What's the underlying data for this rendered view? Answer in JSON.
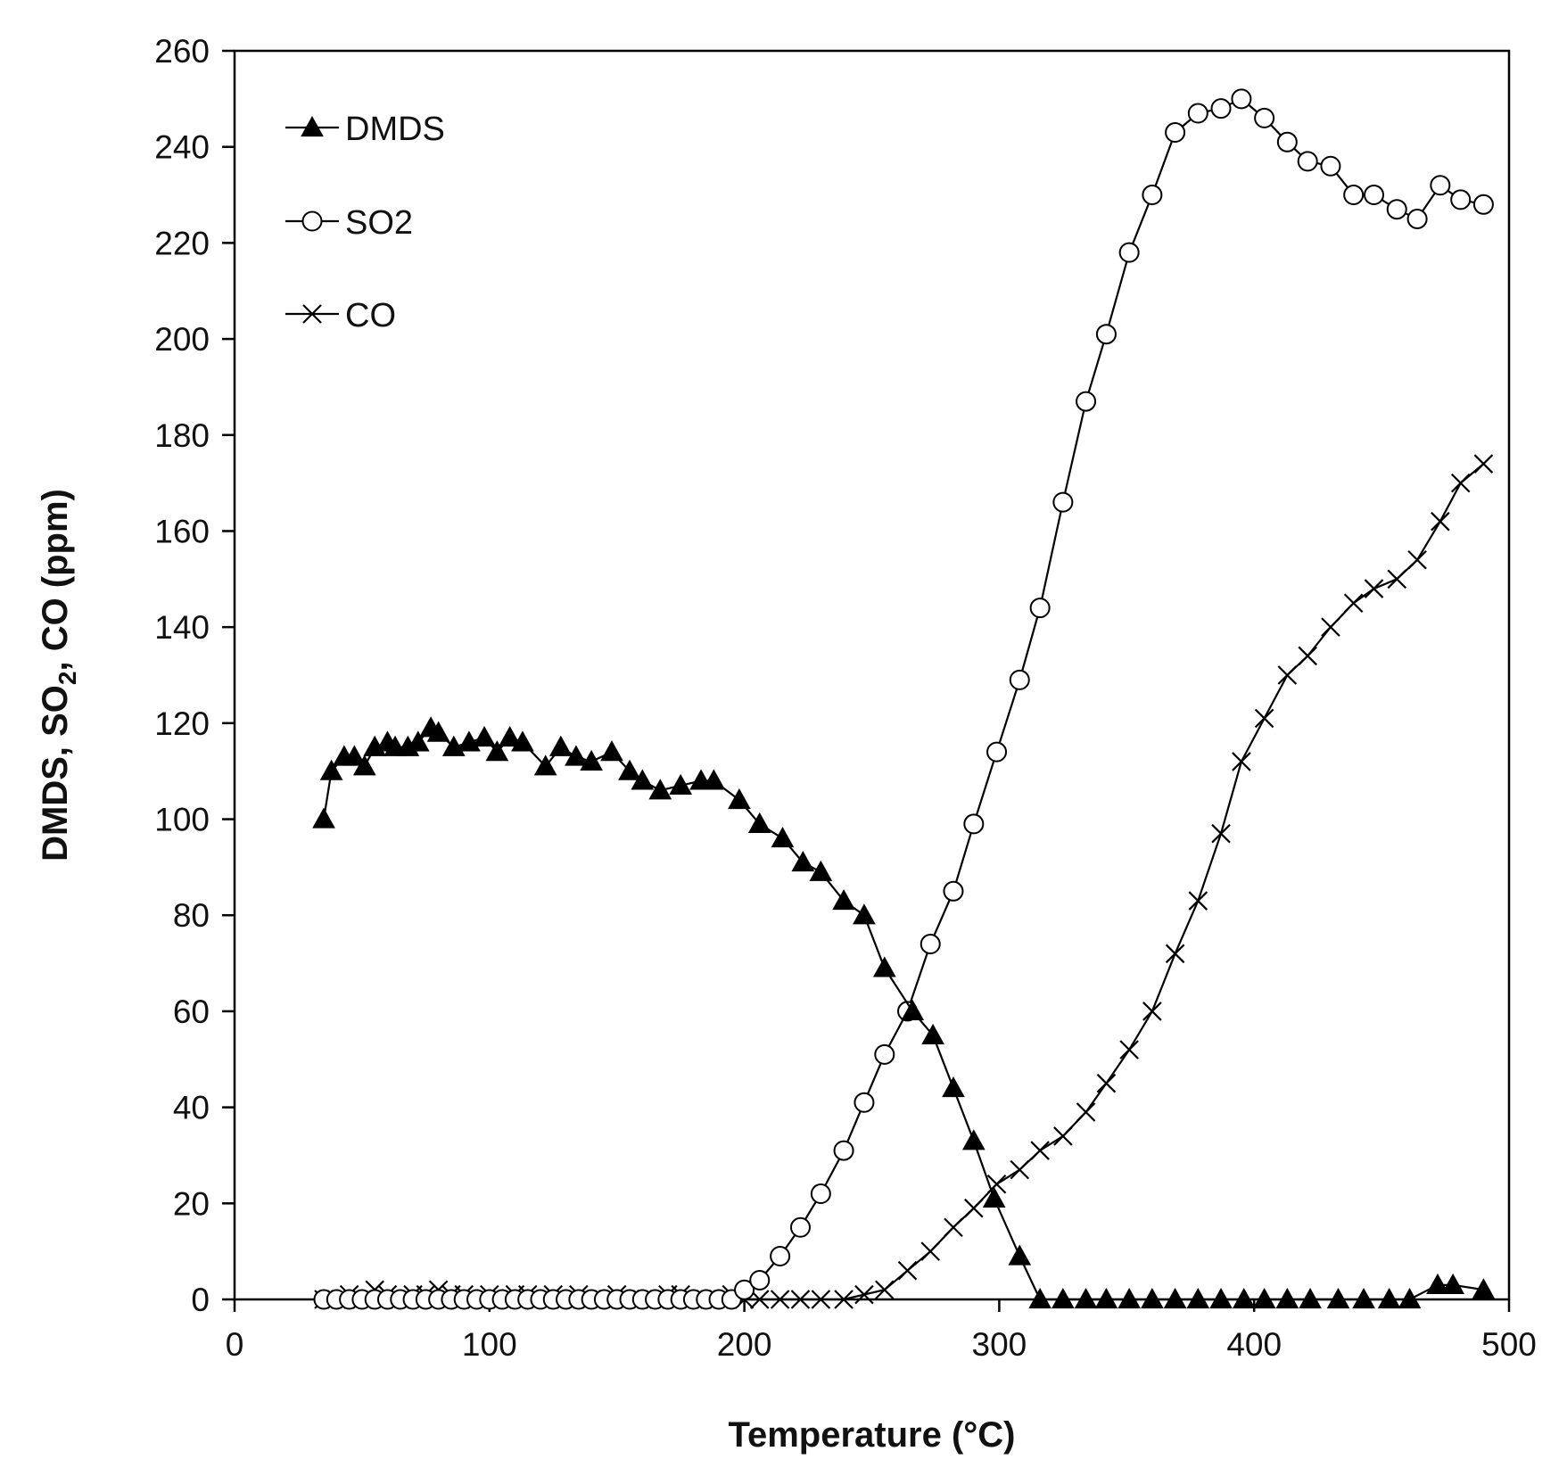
{
  "chart_data": {
    "type": "line",
    "title": "",
    "xlabel": "Temperature (°C)",
    "ylabel": {
      "prefix": "DMDS, SO",
      "sub": "2",
      "suffix": ", CO (ppm)"
    },
    "xlim": [
      0,
      500
    ],
    "ylim": [
      0,
      260
    ],
    "xticks": [
      0,
      100,
      200,
      300,
      400,
      500
    ],
    "yticks": [
      0,
      20,
      40,
      60,
      80,
      100,
      120,
      140,
      160,
      180,
      200,
      220,
      240,
      260
    ],
    "grid": false,
    "legend_position": "top-left",
    "series": [
      {
        "name": "DMDS",
        "marker": "filled-triangle",
        "x": [
          35,
          38,
          43,
          47,
          51,
          55,
          60,
          63,
          68,
          72,
          77,
          80,
          86,
          92,
          98,
          103,
          108,
          113,
          122,
          128,
          134,
          140,
          148,
          155,
          160,
          167,
          175,
          183,
          188,
          198,
          206,
          215,
          223,
          230,
          239,
          247,
          255,
          266,
          274,
          282,
          290,
          298,
          308,
          316,
          325,
          334,
          342,
          351,
          360,
          369,
          378,
          387,
          396,
          404,
          413,
          422,
          433,
          443,
          453,
          461,
          472,
          478,
          490
        ],
        "values": [
          100,
          110,
          113,
          113,
          111,
          115,
          116,
          115,
          115,
          116,
          119,
          118,
          115,
          116,
          117,
          114,
          117,
          116,
          111,
          115,
          113,
          112,
          114,
          110,
          108,
          106,
          107,
          108,
          108,
          104,
          99,
          96,
          91,
          89,
          83,
          80,
          69,
          60,
          55,
          44,
          33,
          21,
          9,
          0,
          0,
          0,
          0,
          0,
          0,
          0,
          0,
          0,
          0,
          0,
          0,
          0,
          0,
          0,
          0,
          0,
          3,
          3,
          2
        ]
      },
      {
        "name": "SO2",
        "marker": "open-circle",
        "x": [
          35,
          40,
          45,
          50,
          55,
          60,
          65,
          70,
          75,
          80,
          85,
          90,
          95,
          100,
          105,
          110,
          115,
          120,
          125,
          130,
          135,
          140,
          145,
          150,
          155,
          160,
          165,
          170,
          175,
          180,
          185,
          190,
          195,
          200,
          206,
          214,
          222,
          230,
          239,
          247,
          255,
          264,
          273,
          282,
          290,
          299,
          308,
          316,
          325,
          334,
          342,
          351,
          360,
          369,
          378,
          387,
          395,
          404,
          413,
          421,
          430,
          439,
          447,
          456,
          464,
          473,
          481,
          490
        ],
        "values": [
          0,
          0,
          0,
          0,
          0,
          0,
          0,
          0,
          0,
          0,
          0,
          0,
          0,
          0,
          0,
          0,
          0,
          0,
          0,
          0,
          0,
          0,
          0,
          0,
          0,
          0,
          0,
          0,
          0,
          0,
          0,
          0,
          0,
          2,
          4,
          9,
          15,
          22,
          31,
          41,
          51,
          60,
          74,
          85,
          99,
          114,
          129,
          144,
          166,
          187,
          201,
          218,
          230,
          243,
          247,
          248,
          250,
          246,
          241,
          237,
          236,
          230,
          230,
          227,
          225,
          232,
          229,
          228
        ]
      },
      {
        "name": "CO",
        "marker": "cross",
        "x": [
          35,
          40,
          45,
          50,
          55,
          60,
          65,
          70,
          75,
          80,
          85,
          90,
          95,
          100,
          105,
          110,
          115,
          120,
          125,
          130,
          135,
          140,
          145,
          150,
          155,
          160,
          165,
          170,
          175,
          180,
          185,
          190,
          195,
          200,
          206,
          214,
          222,
          230,
          239,
          247,
          255,
          264,
          273,
          282,
          290,
          299,
          308,
          316,
          325,
          334,
          342,
          351,
          360,
          369,
          378,
          387,
          395,
          404,
          413,
          421,
          430,
          439,
          447,
          456,
          464,
          473,
          481,
          490
        ],
        "values": [
          0,
          0,
          1,
          0,
          2,
          1,
          0,
          1,
          1,
          2,
          1,
          1,
          0,
          1,
          0,
          1,
          1,
          0,
          1,
          0,
          1,
          0,
          0,
          1,
          0,
          0,
          0,
          1,
          1,
          0,
          0,
          0,
          1,
          0,
          0,
          0,
          0,
          0,
          0,
          1,
          2,
          6,
          10,
          15,
          19,
          24,
          27,
          31,
          34,
          39,
          45,
          52,
          60,
          72,
          83,
          97,
          112,
          121,
          130,
          134,
          140,
          145,
          148,
          150,
          154,
          162,
          170,
          174
        ]
      }
    ]
  }
}
